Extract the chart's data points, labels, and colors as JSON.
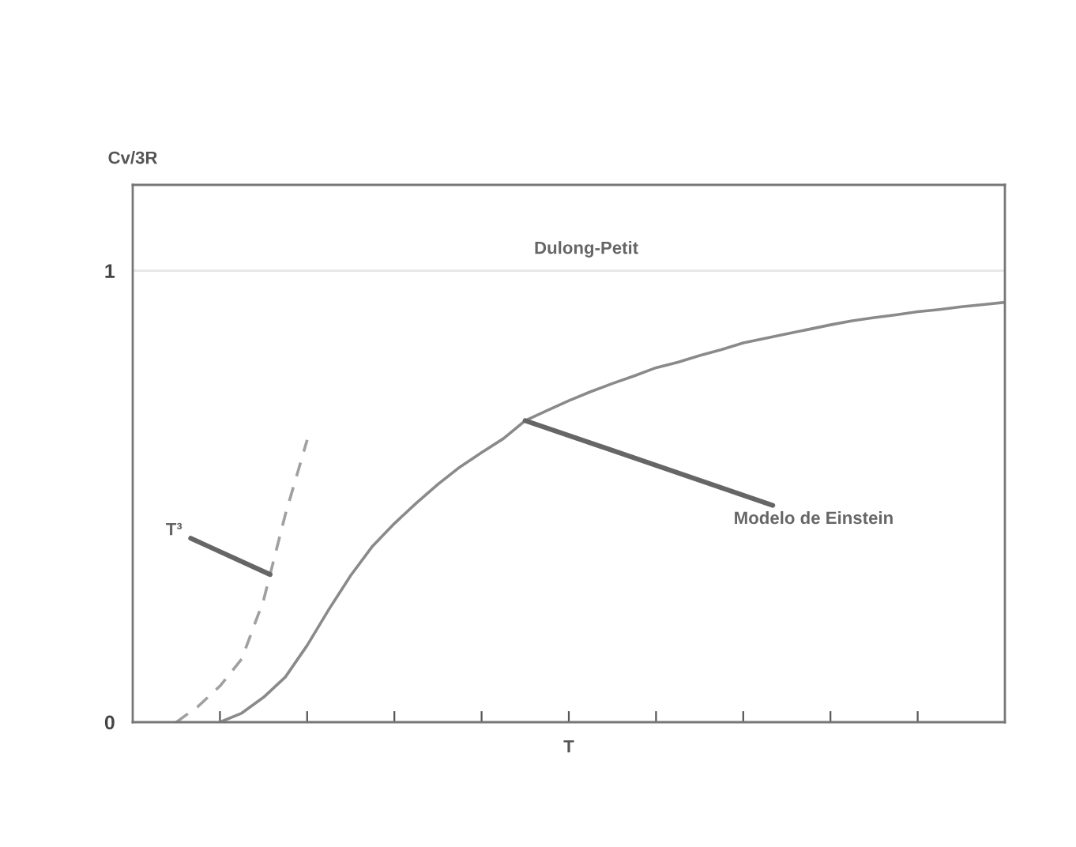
{
  "chart_data": {
    "type": "line",
    "xlabel": "T",
    "ylabel": "Cv/3R",
    "categories": [
      null,
      null,
      null,
      null,
      null,
      null,
      null,
      null,
      null,
      null,
      null,
      null,
      null,
      null,
      null,
      null,
      null,
      null,
      null,
      null,
      null,
      null,
      null,
      null,
      null,
      null,
      null,
      null,
      null,
      null,
      null,
      null,
      null,
      null,
      null,
      null,
      null,
      null,
      null,
      null,
      null
    ],
    "ylim": [
      0,
      1.19
    ],
    "yticks": [
      0,
      1
    ],
    "tick_labels": "y",
    "grid": false,
    "series": [
      {
        "color": "#8a8a8a",
        "line_style": "solid",
        "values": [
          null,
          null,
          null,
          null,
          0,
          0.02,
          0.055,
          0.1,
          0.17,
          0.25,
          0.325,
          0.39,
          0.44,
          0.485,
          0.527,
          0.565,
          0.597,
          0.628,
          0.668,
          0.69,
          0.712,
          0.732,
          0.75,
          0.767,
          0.785,
          0.797,
          0.812,
          0.825,
          0.84,
          0.85,
          0.86,
          0.87,
          0.88,
          0.889,
          0.896,
          0.902,
          0.909,
          0.914,
          0.92,
          0.925,
          0.93
        ]
      },
      {
        "color": "#a0a0a0",
        "line_style": "dashed",
        "values": [
          null,
          null,
          0,
          0.035,
          0.08,
          0.14,
          0.27,
          0.46,
          0.625,
          null,
          null,
          null,
          null,
          null,
          null,
          null,
          null,
          null,
          null,
          null,
          null,
          null,
          null,
          null,
          null,
          null,
          null,
          null,
          null,
          null,
          null,
          null,
          null,
          null,
          null,
          null,
          null,
          null,
          null,
          null,
          null
        ]
      }
    ],
    "ref_lines": [
      {
        "axis": "y",
        "value": 1,
        "label": "Dulong-Petit",
        "color": "#e6e6e6",
        "line_style": "solid"
      }
    ],
    "annotations": [
      "T³",
      "Modelo de Einstein"
    ]
  }
}
